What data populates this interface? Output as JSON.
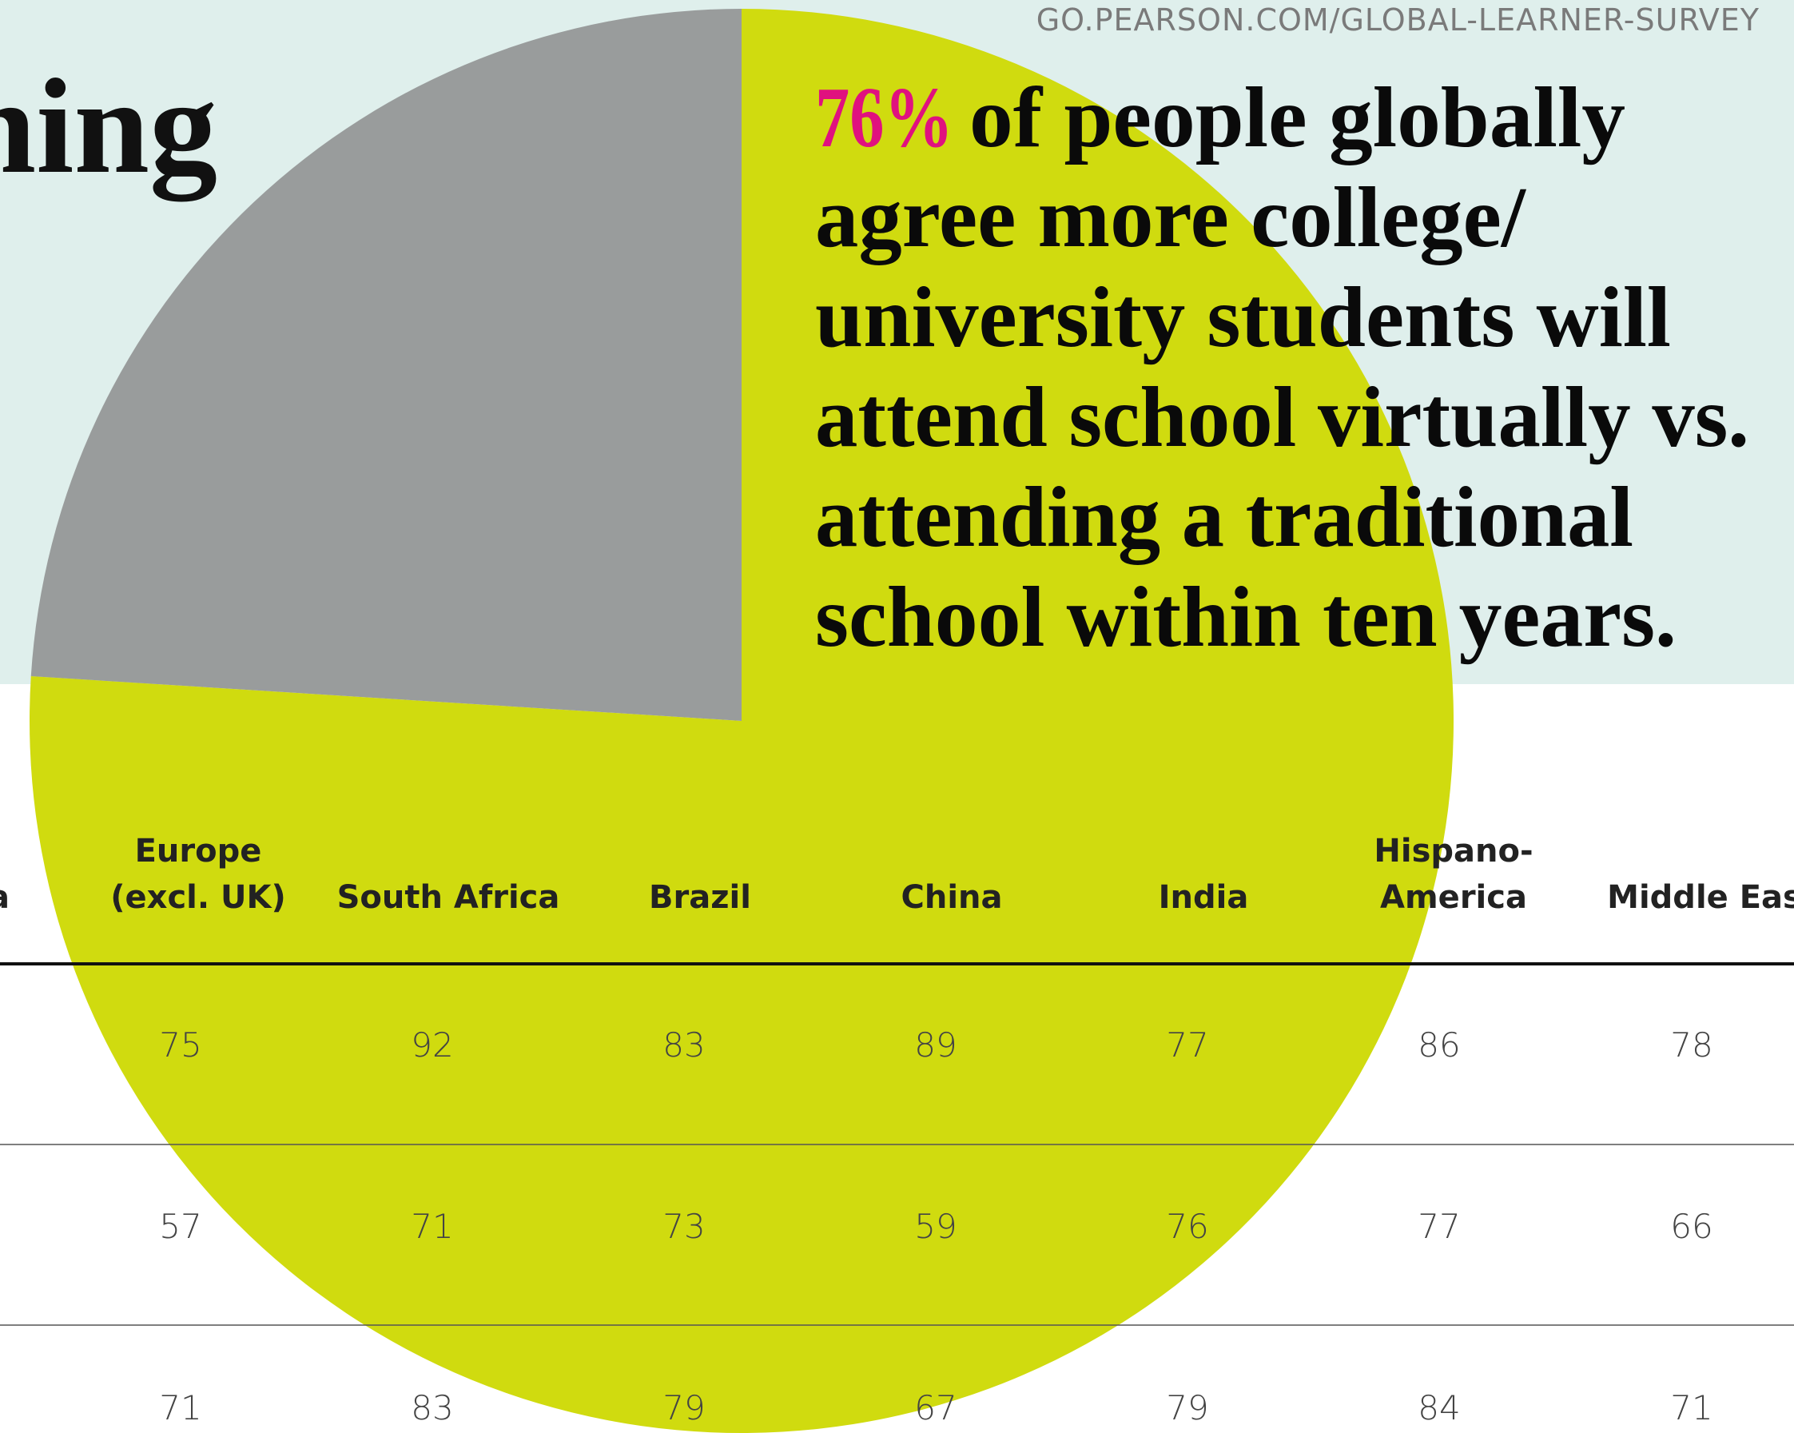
{
  "url": "GO.PEARSON.COM/GLOBAL-LEARNER-SURVEY",
  "title_fragment": "ning",
  "chart_data": {
    "type": "pie",
    "values": [
      76,
      24
    ],
    "value_labels": [
      "76%",
      null
    ],
    "colors": [
      "#d0db0f",
      "#999c9c"
    ]
  },
  "headline": {
    "lines": [
      "of people globally",
      "agree more college/",
      "university students will",
      "attend school virtually vs.",
      "attending a traditional",
      "school within ten years."
    ]
  },
  "table": {
    "columns": [
      [
        "a"
      ],
      [
        "Europe",
        "(excl. UK)"
      ],
      [
        "South Africa"
      ],
      [
        "Brazil"
      ],
      [
        "China"
      ],
      [
        "India"
      ],
      [
        "Hispano-",
        "America"
      ],
      [
        "Middle Eas"
      ]
    ],
    "rows": [
      [
        75,
        92,
        83,
        89,
        77,
        86,
        78
      ],
      [
        57,
        71,
        73,
        59,
        76,
        77,
        66
      ],
      [
        71,
        83,
        79,
        67,
        79,
        84,
        71
      ]
    ]
  }
}
